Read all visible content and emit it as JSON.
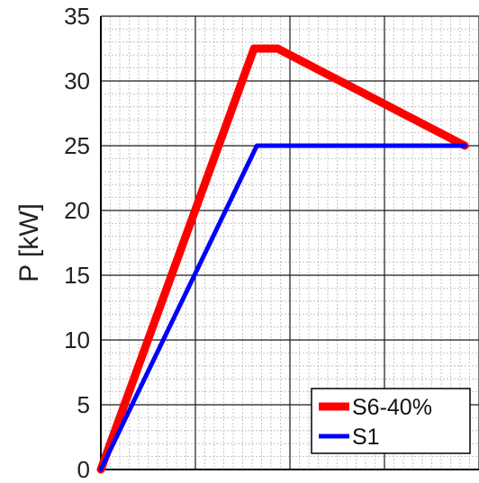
{
  "chart_data": {
    "type": "line",
    "title": "",
    "xlabel": "",
    "ylabel": "P [kW]",
    "ylim": [
      0,
      35
    ],
    "yticks": [
      0,
      5,
      10,
      15,
      20,
      25,
      30,
      35
    ],
    "xlim": [
      0,
      2000
    ],
    "xticks_major": [
      0,
      500,
      1000,
      1500,
      2000
    ],
    "x_tick_labels_visible": false,
    "grid": "major and minor",
    "legend": "bottom-right",
    "series": [
      {
        "name": "S6-40%",
        "color": "#ff0000",
        "x": [
          0,
          810,
          935,
          1925
        ],
        "y": [
          0,
          32.5,
          32.5,
          25
        ]
      },
      {
        "name": "S1",
        "color": "#0000ff",
        "x": [
          0,
          825,
          1925
        ],
        "y": [
          0,
          25,
          25
        ]
      }
    ]
  }
}
